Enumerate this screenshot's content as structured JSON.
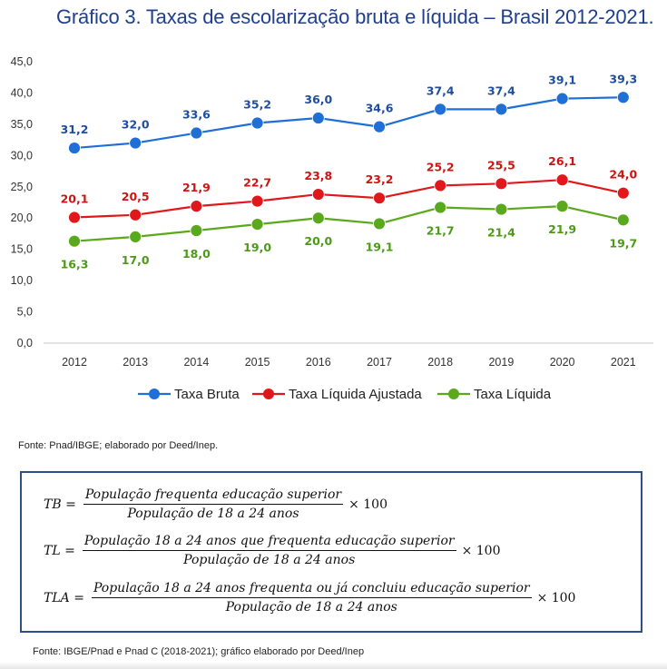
{
  "title": "Gráfico 3. Taxas de escolarização bruta e líquida – Brasil 2012-2021.",
  "chart_data": {
    "type": "line",
    "title": "Gráfico 3. Taxas de escolarização bruta e líquida – Brasil 2012-2021.",
    "x": [
      "2012",
      "2013",
      "2014",
      "2015",
      "2016",
      "2017",
      "2018",
      "2019",
      "2020",
      "2021"
    ],
    "ylim": [
      0,
      45
    ],
    "yticks": [
      "0,0",
      "5,0",
      "10,0",
      "15,0",
      "20,0",
      "25,0",
      "30,0",
      "35,0",
      "40,0",
      "45,0"
    ],
    "ytick_values": [
      0,
      5,
      10,
      15,
      20,
      25,
      30,
      35,
      40,
      45
    ],
    "grid": false,
    "legend_position": "bottom",
    "series": [
      {
        "name": "Taxa Bruta",
        "color": "#1f6fd6",
        "values": [
          31.2,
          32.0,
          33.6,
          35.2,
          36.0,
          34.6,
          37.4,
          37.4,
          39.1,
          39.3
        ],
        "labels": [
          "31,2",
          "32,0",
          "33,6",
          "35,2",
          "36,0",
          "34,6",
          "37,4",
          "37,4",
          "39,1",
          "39,3"
        ],
        "label_color": "#1f4e9c",
        "label_side": "above"
      },
      {
        "name": "Taxa Líquida Ajustada",
        "color": "#e0181b",
        "values": [
          20.1,
          20.5,
          21.9,
          22.7,
          23.8,
          23.2,
          25.2,
          25.5,
          26.1,
          24.0
        ],
        "labels": [
          "20,1",
          "20,5",
          "21,9",
          "22,7",
          "23,8",
          "23,2",
          "25,2",
          "25,5",
          "26,1",
          "24,0"
        ],
        "label_color": "#cc1414",
        "label_side": "above"
      },
      {
        "name": "Taxa Líquida",
        "color": "#5aa81c",
        "values": [
          16.3,
          17.0,
          18.0,
          19.0,
          20.0,
          19.1,
          21.7,
          21.4,
          21.9,
          19.7
        ],
        "labels": [
          "16,3",
          "17,0",
          "18,0",
          "19,0",
          "20,0",
          "19,1",
          "21,7",
          "21,4",
          "21,9",
          "19,7"
        ],
        "label_color": "#4e9a18",
        "label_side": "below"
      }
    ]
  },
  "source1": "Fonte: Pnad/IBGE; elaborado por Deed/Inep.",
  "formulas": {
    "tb": {
      "lhs": "TB =",
      "num": "População frequenta educação superior",
      "den": "População de 18 a 24 anos",
      "mult": "× 100"
    },
    "tl": {
      "lhs": "TL =",
      "num": "População 18 a 24 anos que frequenta educação superior",
      "den": "População de 18 a 24 anos",
      "mult": "× 100"
    },
    "tla": {
      "lhs": "TLA =",
      "num": "População 18 a 24 anos frequenta ou já concluiu educação superior",
      "den": "População de 18 a 24 anos",
      "mult": "× 100"
    }
  },
  "source2": "Fonte: IBGE/Pnad e Pnad C (2018-2021); gráfico elaborado por Deed/Inep"
}
